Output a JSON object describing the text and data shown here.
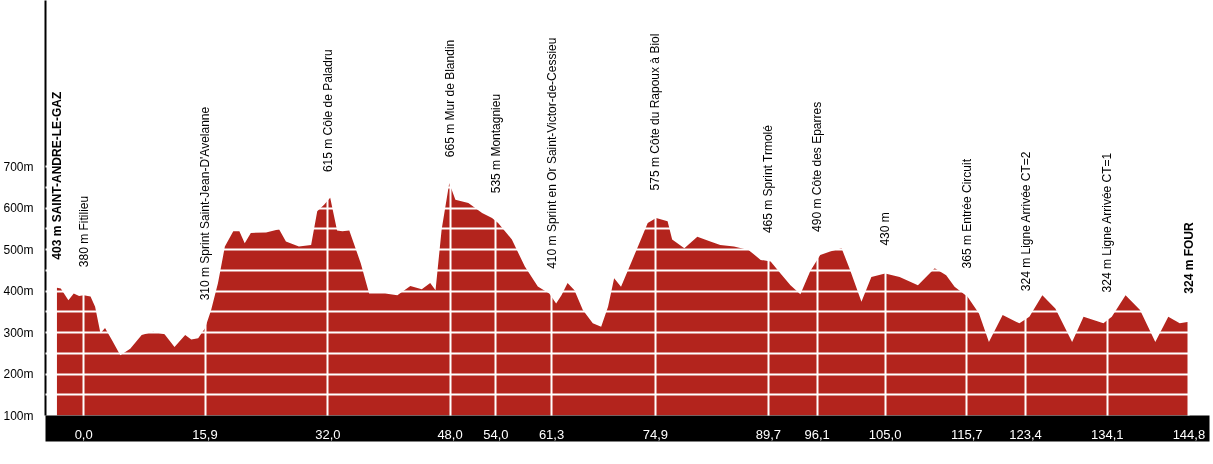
{
  "chart_data": {
    "type": "area",
    "color": "#b3241d",
    "x": [
      -3.5,
      -3.0,
      -2.0,
      -1.3,
      -0.6,
      0.0,
      0.9,
      1.5,
      2.2,
      2.8,
      3.7,
      4.8,
      6.1,
      7.6,
      9.1,
      10.6,
      11.9,
      13.3,
      14.1,
      15.0,
      15.9,
      16.7,
      17.6,
      18.5,
      19.6,
      20.4,
      21.1,
      21.9,
      23.9,
      25.6,
      26.5,
      28.2,
      29.8,
      30.6,
      31.5,
      32.3,
      33.2,
      33.9,
      34.8,
      36.3,
      37.4,
      39.5,
      41.1,
      42.8,
      44.3,
      45.4,
      46.1,
      46.9,
      47.9,
      48.7,
      50.4,
      52.2,
      53.5,
      54.3,
      56.1,
      57.8,
      59.5,
      61.0,
      61.9,
      62.6,
      63.4,
      64.3,
      65.4,
      66.7,
      67.8,
      68.7,
      69.5,
      70.4,
      71.7,
      72.8,
      73.9,
      75.0,
      76.5,
      77.1,
      78.7,
      80.4,
      82.1,
      83.4,
      85.2,
      87.1,
      88.7,
      90.0,
      91.3,
      92.6,
      93.9,
      95.2,
      96.5,
      97.8,
      99.3,
      100.4,
      101.9,
      103.2,
      105.0,
      106.9,
      109.3,
      111.5,
      113.0,
      114.1,
      115.8,
      117.3,
      118.6,
      120.4,
      122.6,
      123.9,
      125.6,
      127.3,
      129.5,
      131.0,
      133.6,
      134.7,
      136.5,
      138.4,
      140.4,
      142.1,
      143.6,
      144.8
    ],
    "values": [
      408,
      406,
      378,
      394,
      388,
      390,
      387,
      362,
      298,
      311,
      282,
      245,
      261,
      294,
      302,
      296,
      265,
      294,
      283,
      286,
      310,
      354,
      419,
      507,
      544,
      544,
      515,
      540,
      541,
      549,
      519,
      507,
      511,
      592,
      608,
      625,
      546,
      544,
      546,
      467,
      394,
      394,
      390,
      412,
      404,
      419,
      402,
      548,
      660,
      620,
      612,
      588,
      576,
      564,
      524,
      459,
      411,
      394,
      370,
      390,
      419,
      402,
      354,
      322,
      314,
      362,
      431,
      410,
      467,
      515,
      564,
      576,
      568,
      524,
      503,
      531,
      519,
      511,
      507,
      499,
      475,
      471,
      442,
      414,
      392,
      448,
      487,
      495,
      503,
      451,
      374,
      434,
      442,
      434,
      414,
      455,
      438,
      410,
      386,
      346,
      277,
      342,
      322,
      338,
      390,
      358,
      277,
      338,
      322,
      338,
      390,
      354,
      277,
      338,
      322,
      326
    ],
    "xlim": [
      -5,
      147.5
    ],
    "ylim": [
      100,
      1100
    ],
    "xticks": [
      {
        "value": 0.0,
        "label": "0,0"
      },
      {
        "value": 15.9,
        "label": "15,9"
      },
      {
        "value": 32.0,
        "label": "32,0"
      },
      {
        "value": 48.0,
        "label": "48,0"
      },
      {
        "value": 54.0,
        "label": "54,0"
      },
      {
        "value": 61.3,
        "label": "61,3"
      },
      {
        "value": 74.9,
        "label": "74,9"
      },
      {
        "value": 89.7,
        "label": "89,7"
      },
      {
        "value": 96.1,
        "label": "96,1"
      },
      {
        "value": 105.0,
        "label": "105,0"
      },
      {
        "value": 115.7,
        "label": "115,7"
      },
      {
        "value": 123.4,
        "label": "123,4"
      },
      {
        "value": 134.1,
        "label": "134,1"
      },
      {
        "value": 144.8,
        "label": "144,8"
      }
    ],
    "yticks": [
      {
        "value": 100,
        "label": "100m"
      },
      {
        "value": 150,
        "label": null
      },
      {
        "value": 200,
        "label": "200m"
      },
      {
        "value": 250,
        "label": null
      },
      {
        "value": 300,
        "label": "300m"
      },
      {
        "value": 350,
        "label": null
      },
      {
        "value": 400,
        "label": "400m"
      },
      {
        "value": 450,
        "label": null
      },
      {
        "value": 500,
        "label": "500m"
      },
      {
        "value": 550,
        "label": null
      },
      {
        "value": 600,
        "label": "600m"
      },
      {
        "value": 650,
        "label": null
      },
      {
        "value": 700,
        "label": "700m"
      }
    ],
    "grid": true,
    "annotations": [
      {
        "text": "403 m SAINT-ANDRE-LE-GAZ",
        "x": -3.5,
        "y": 408
      },
      {
        "text": "380 m Fitilieu",
        "x": 0.0,
        "y": 390
      },
      {
        "text": "310 m Sprint Saint-Jean-D'Avelanne",
        "x": 15.9,
        "y": 310
      },
      {
        "text": "615 m  Côle de Paladru",
        "x": 32.0,
        "y": 619
      },
      {
        "text": "665 m Mur de Blandin",
        "x": 48.0,
        "y": 655
      },
      {
        "text": "535 m Montagnieu",
        "x": 54.0,
        "y": 568
      },
      {
        "text": "410 m Sprint en Or Saint-Victor-de-Cessieu",
        "x": 61.3,
        "y": 386
      },
      {
        "text": "575 m Côte du Rapoux à Biol",
        "x": 74.9,
        "y": 575
      },
      {
        "text": "465 m Sprint Trmolé",
        "x": 89.7,
        "y": 472
      },
      {
        "text": "490 m Côte des Eparres",
        "x": 96.1,
        "y": 475
      },
      {
        "text": "430 m",
        "x": 105.0,
        "y": 442
      },
      {
        "text": "365 m Entrée Circuit",
        "x": 115.7,
        "y": 387
      },
      {
        "text": "324 m Ligne Arrivée CT=2",
        "x": 123.4,
        "y": 332
      },
      {
        "text": "324 m Ligne Arrivée CT=1",
        "x": 134.1,
        "y": 329
      },
      {
        "text": "324  m FOUR",
        "x": 144.8,
        "y": 326
      }
    ]
  }
}
